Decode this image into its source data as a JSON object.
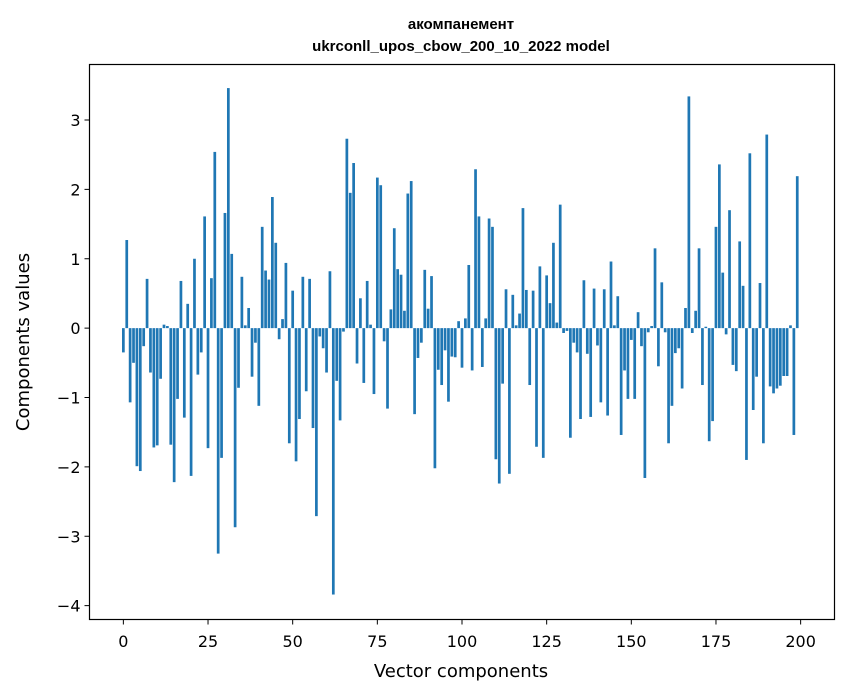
{
  "chart_data": {
    "type": "bar",
    "title": "акомпанемент",
    "subtitle": "ukrconll_upos_cbow_200_10_2022 model",
    "xlabel": "Vector components",
    "ylabel": "Components values",
    "xlim": [
      -10,
      210
    ],
    "ylim": [
      -4.2,
      3.8
    ],
    "xticks": [
      0,
      25,
      50,
      75,
      100,
      125,
      150,
      175,
      200
    ],
    "yticks": [
      3,
      2,
      1,
      0,
      -1,
      -2,
      -3,
      -4
    ],
    "ytick_labels": [
      "3",
      "2",
      "1",
      "0",
      "−1",
      "−2",
      "−3",
      "−4"
    ],
    "bar_color": "#1f77b4",
    "grid": false,
    "values": [
      -0.35,
      1.27,
      -1.07,
      -0.5,
      -1.99,
      -2.06,
      -0.26,
      0.71,
      -0.64,
      -1.72,
      -1.69,
      -0.73,
      0.05,
      0.03,
      -1.68,
      -2.22,
      -1.02,
      0.68,
      -1.29,
      0.35,
      -2.13,
      1.0,
      -0.67,
      -0.35,
      1.61,
      -1.73,
      0.72,
      2.54,
      -3.25,
      -1.87,
      1.66,
      3.46,
      1.07,
      -2.87,
      -0.86,
      0.74,
      0.04,
      0.29,
      -0.7,
      -0.21,
      -1.12,
      1.46,
      0.83,
      0.7,
      1.89,
      1.23,
      -0.16,
      0.13,
      0.94,
      -1.66,
      0.54,
      -1.92,
      -1.31,
      0.74,
      -0.91,
      0.71,
      -1.44,
      -2.71,
      -0.12,
      -0.29,
      -0.64,
      0.82,
      -3.84,
      -0.76,
      -1.33,
      -0.05,
      2.73,
      1.95,
      2.38,
      -0.51,
      0.43,
      -0.79,
      0.68,
      0.05,
      -0.95,
      2.17,
      2.06,
      -0.19,
      -1.16,
      0.27,
      1.44,
      0.85,
      0.77,
      0.25,
      1.94,
      2.12,
      -1.24,
      -0.43,
      -0.21,
      0.84,
      0.28,
      0.75,
      -2.02,
      -0.6,
      -0.82,
      -0.32,
      -1.06,
      -0.41,
      -0.42,
      0.1,
      -0.57,
      0.14,
      0.91,
      -0.61,
      2.29,
      1.61,
      -0.56,
      0.14,
      1.58,
      1.46,
      -1.89,
      -2.24,
      -0.8,
      0.56,
      -2.1,
      0.48,
      0.04,
      0.21,
      1.73,
      0.55,
      -0.82,
      0.54,
      -1.71,
      0.89,
      -1.87,
      0.76,
      0.36,
      1.23,
      0.08,
      1.78,
      -0.07,
      -0.04,
      -1.58,
      -0.21,
      -0.35,
      -1.31,
      0.69,
      -0.37,
      -1.28,
      0.57,
      -0.25,
      -1.07,
      0.56,
      -1.26,
      0.96,
      0.04,
      0.46,
      -1.54,
      -0.61,
      -1.02,
      -0.17,
      -1.02,
      0.23,
      -0.26,
      -2.16,
      -0.06,
      0.03,
      1.15,
      -0.55,
      0.66,
      -0.06,
      -1.66,
      -1.12,
      -0.36,
      -0.29,
      -0.87,
      0.29,
      3.34,
      -0.07,
      0.25,
      1.15,
      -0.82,
      0.02,
      -1.63,
      -1.34,
      1.46,
      2.36,
      0.8,
      -0.09,
      1.7,
      -0.53,
      -0.62,
      1.25,
      0.61,
      -1.9,
      2.52,
      -1.18,
      -0.7,
      0.65,
      -1.66,
      2.79,
      -0.84,
      -0.94,
      -0.87,
      -0.83,
      -0.69,
      -0.69,
      0.04,
      -1.54,
      2.19
    ]
  }
}
